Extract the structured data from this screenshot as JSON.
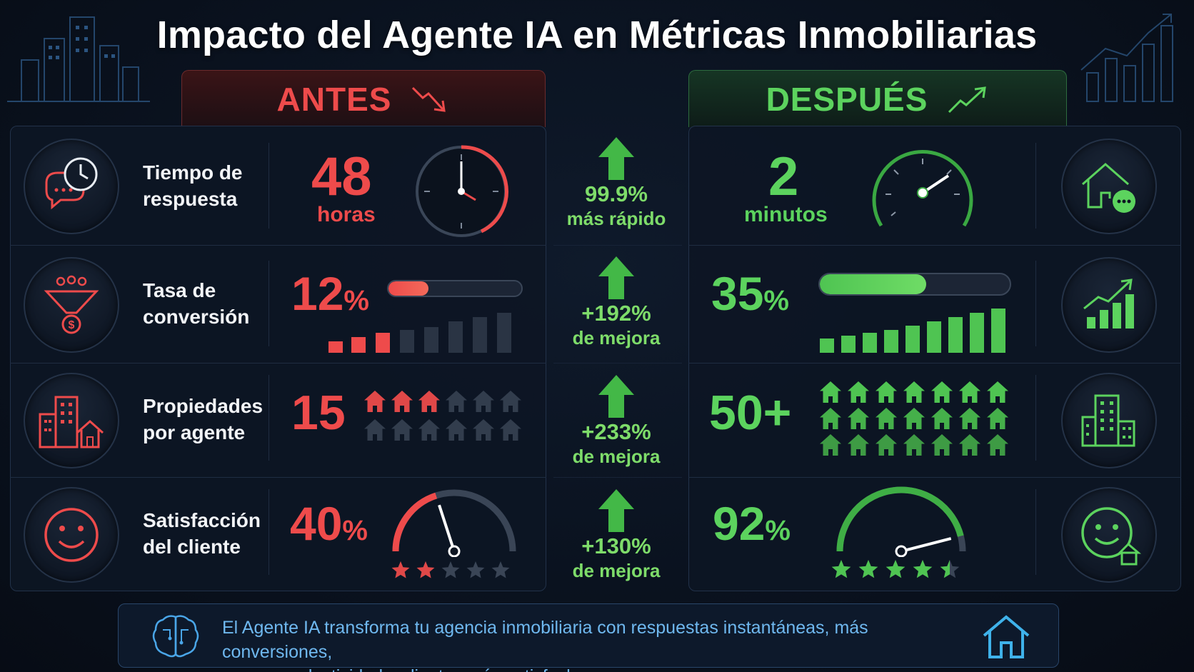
{
  "title": "Impacto del Agente IA en Métricas Inmobiliarias",
  "headers": {
    "antes": "ANTES",
    "despues": "DESPUÉS"
  },
  "colors": {
    "red": "#ee4b4b",
    "green": "#5cd35e",
    "improvement": "#7edc6a",
    "footer_text": "#6fb8ef"
  },
  "metrics": [
    {
      "label_line1": "Tiempo de",
      "label_line2": "respuesta",
      "left_icon": "chat-clock-icon",
      "before_value": "48",
      "before_unit": "horas",
      "before_visual": "clock-icon",
      "improvement_pct": "99.9%",
      "improvement_text": "más rápido",
      "after_value": "2",
      "after_unit": "minutos",
      "after_visual": "speedometer-icon",
      "right_icon": "house-chat-icon"
    },
    {
      "label_line1": "Tasa de",
      "label_line2": "conversión",
      "left_icon": "funnel-dollar-icon",
      "before_value": "12",
      "before_unit": "%",
      "before_progress": 0.12,
      "improvement_pct": "+192%",
      "improvement_text": "de mejora",
      "after_value": "35",
      "after_unit": "%",
      "after_progress": 0.35,
      "right_icon": "growth-chart-icon"
    },
    {
      "label_line1": "Propiedades",
      "label_line2": "por agente",
      "left_icon": "buildings-house-icon",
      "before_value": "15",
      "before_unit": "",
      "improvement_pct": "+233%",
      "improvement_text": "de mejora",
      "after_value": "50+",
      "after_unit": "",
      "right_icon": "buildings-icon"
    },
    {
      "label_line1": "Satisfacción",
      "label_line2": "del cliente",
      "left_icon": "smiley-icon",
      "before_value": "40",
      "before_unit": "%",
      "before_stars": 2,
      "before_gauge": 0.4,
      "improvement_pct": "+130%",
      "improvement_text": "de mejora",
      "after_value": "92",
      "after_unit": "%",
      "after_stars": 4.5,
      "after_gauge": 0.92,
      "right_icon": "smiley-house-icon"
    }
  ],
  "footer": {
    "icon": "brain-circuit-icon",
    "text_line1": "El Agente IA transforma tu agencia inmobiliaria con respuestas instantáneas, más conversiones,",
    "text_line2": "mayor productividad y clientes más satisfechos.",
    "right_icon": "house-outline-icon"
  }
}
